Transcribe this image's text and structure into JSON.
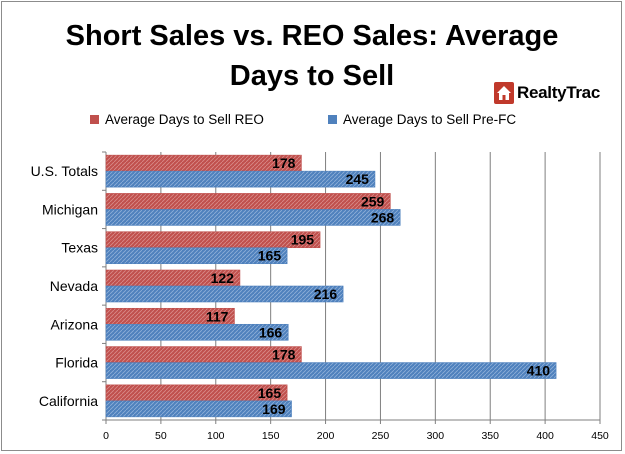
{
  "title": "Short Sales vs. REO Sales: Average Days to Sell",
  "logo_text": "RealtyTrac",
  "colors": {
    "reo": "#c0504d",
    "prefc": "#4f81bd",
    "grid": "#7f7f7f"
  },
  "chart_data": {
    "type": "bar",
    "orientation": "horizontal",
    "title": "Short Sales vs. REO Sales: Average Days to Sell",
    "xlabel": "",
    "ylabel": "",
    "categories": [
      "U.S. Totals",
      "Michigan",
      "Texas",
      "Nevada",
      "Arizona",
      "Florida",
      "California"
    ],
    "series": [
      {
        "name": "Average Days to Sell REO",
        "values": [
          178,
          259,
          195,
          122,
          117,
          178,
          165
        ]
      },
      {
        "name": "Average Days to Sell Pre-FC",
        "values": [
          245,
          268,
          165,
          216,
          166,
          410,
          169
        ]
      }
    ],
    "xlim": [
      0,
      450
    ],
    "xticks": [
      0,
      50,
      100,
      150,
      200,
      250,
      300,
      350,
      400,
      450
    ],
    "grid": "vertical",
    "legend_position": "top",
    "data_labels": true
  }
}
